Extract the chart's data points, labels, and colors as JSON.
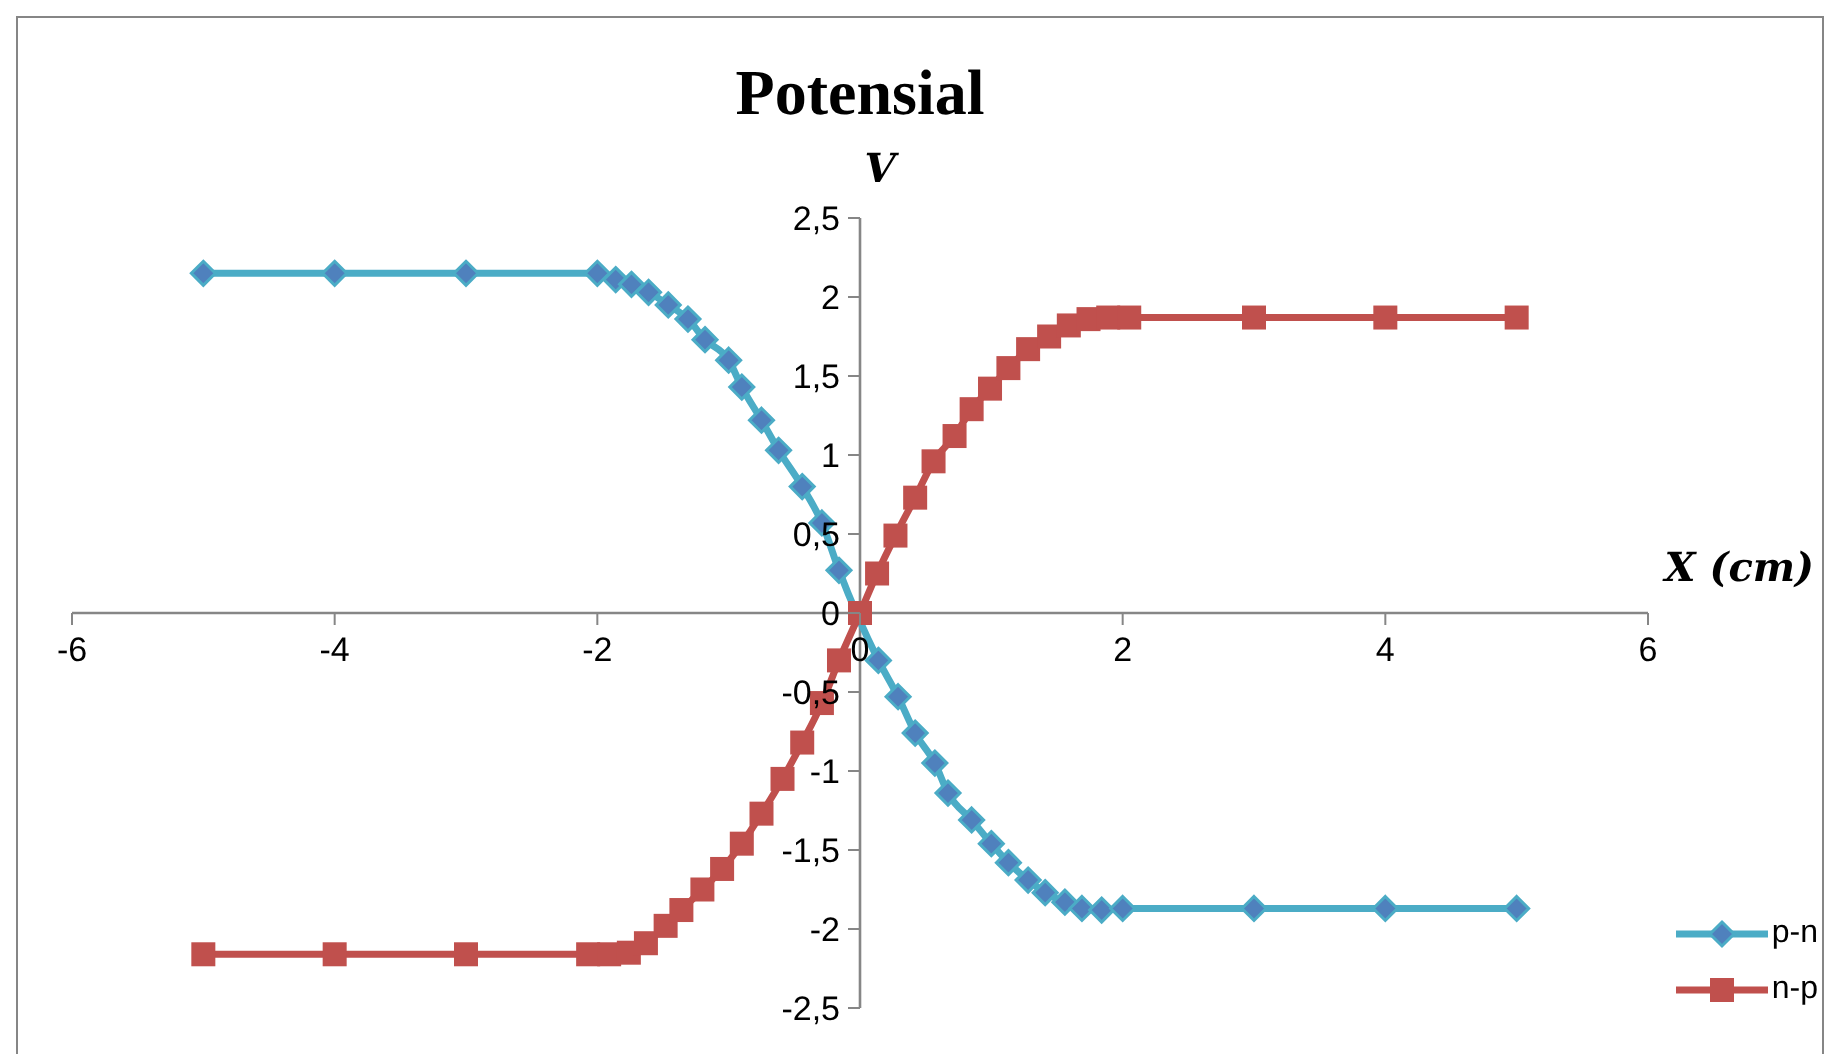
{
  "chart_data": {
    "type": "line",
    "title": "Potensial",
    "xlabel": "X (cm)",
    "ylabel": "V",
    "xlim": [
      -6,
      6
    ],
    "xticks": [
      -6,
      -4,
      -2,
      0,
      2,
      4,
      6
    ],
    "ylim": [
      -2.5,
      2.5
    ],
    "yticks": [
      {
        "value": -2.5,
        "label": "-2,5"
      },
      -2,
      {
        "value": -1.5,
        "label": "-1,5"
      },
      -1,
      {
        "value": -0.5,
        "label": "-0,5"
      },
      0,
      {
        "value": 0.5,
        "label": "0,5"
      },
      1,
      {
        "value": 1.5,
        "label": "1,5"
      },
      2,
      {
        "value": 2.5,
        "label": "2,5"
      }
    ],
    "grid": false,
    "legend": "bottom right",
    "series": [
      {
        "name": "p-n",
        "color": "#4bacc6",
        "marker": "diamond",
        "x": [
          -5,
          -4,
          -3,
          -2,
          -1.86,
          -1.74,
          -1.61,
          -1.46,
          -1.31,
          -1.18,
          -1,
          -0.9,
          -0.75,
          -0.62,
          -0.44,
          -0.29,
          -0.16,
          0.14,
          0.29,
          0.42,
          0.57,
          0.67,
          0.85,
          1,
          1.13,
          1.28,
          1.41,
          1.56,
          1.69,
          1.84,
          2,
          3,
          4,
          5
        ],
        "values": [
          2.15,
          2.15,
          2.15,
          2.15,
          2.11,
          2.08,
          2.03,
          1.95,
          1.86,
          1.73,
          1.6,
          1.43,
          1.22,
          1.03,
          0.8,
          0.57,
          0.27,
          -0.3,
          -0.53,
          -0.76,
          -0.95,
          -1.14,
          -1.31,
          -1.46,
          -1.58,
          -1.69,
          -1.77,
          -1.83,
          -1.87,
          -1.88,
          -1.87,
          -1.87,
          -1.87,
          -1.87
        ]
      },
      {
        "name": "n-p",
        "color": "#c0504d",
        "marker": "square",
        "x": [
          -5,
          -4,
          -3,
          -2.07,
          -1.91,
          -1.76,
          -1.63,
          -1.48,
          -1.36,
          -1.2,
          -1.05,
          -0.9,
          -0.75,
          -0.59,
          -0.44,
          -0.29,
          -0.16,
          0,
          0.13,
          0.27,
          0.42,
          0.56,
          0.72,
          0.85,
          0.99,
          1.13,
          1.28,
          1.44,
          1.59,
          1.74,
          1.89,
          2.05,
          3,
          4,
          5
        ],
        "values": [
          -2.16,
          -2.16,
          -2.16,
          -2.16,
          -2.16,
          -2.15,
          -2.09,
          -1.98,
          -1.88,
          -1.75,
          -1.62,
          -1.46,
          -1.27,
          -1.05,
          -0.82,
          -0.57,
          -0.3,
          0,
          0.25,
          0.49,
          0.73,
          0.96,
          1.12,
          1.29,
          1.42,
          1.55,
          1.67,
          1.75,
          1.82,
          1.86,
          1.87,
          1.87,
          1.87,
          1.87,
          1.87
        ]
      }
    ]
  }
}
